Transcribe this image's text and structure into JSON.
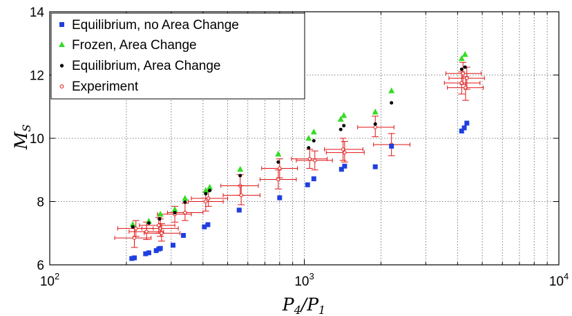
{
  "chart_data": {
    "type": "scatter",
    "title": "",
    "xlabel": "P4/P1",
    "ylabel": "MS",
    "xscale": "log",
    "xlim": [
      100,
      10000
    ],
    "ylim": [
      6,
      14
    ],
    "x_ticks": [
      {
        "value": 100,
        "base": "10",
        "exp": "2"
      },
      {
        "value": 1000,
        "base": "10",
        "exp": "3"
      },
      {
        "value": 10000,
        "base": "10",
        "exp": "4"
      }
    ],
    "y_ticks": [
      6,
      8,
      10,
      12,
      14
    ],
    "grid": true,
    "legend_position": "top-left",
    "colors": {
      "equilibrium_no_area_change": "#1f3fe0",
      "frozen_area_change": "#33dd22",
      "equilibrium_area_change": "#000000",
      "experiment": "#e01010"
    },
    "series": [
      {
        "name": "Equilibrium, no Area Change",
        "marker": "square",
        "points": [
          [
            210,
            6.2
          ],
          [
            215,
            6.22
          ],
          [
            238,
            6.35
          ],
          [
            245,
            6.38
          ],
          [
            262,
            6.45
          ],
          [
            268,
            6.5
          ],
          [
            272,
            6.52
          ],
          [
            305,
            6.62
          ],
          [
            335,
            6.93
          ],
          [
            405,
            7.2
          ],
          [
            418,
            7.27
          ],
          [
            555,
            7.73
          ],
          [
            800,
            8.12
          ],
          [
            1030,
            8.53
          ],
          [
            1090,
            8.72
          ],
          [
            1400,
            9.02
          ],
          [
            1440,
            9.12
          ],
          [
            1900,
            9.1
          ],
          [
            2200,
            9.75
          ],
          [
            4150,
            10.23
          ],
          [
            4250,
            10.33
          ],
          [
            4350,
            10.48
          ]
        ]
      },
      {
        "name": "Frozen, Area Change",
        "marker": "triangle",
        "points": [
          [
            212,
            7.28
          ],
          [
            245,
            7.38
          ],
          [
            272,
            7.6
          ],
          [
            310,
            7.75
          ],
          [
            340,
            8.1
          ],
          [
            410,
            8.35
          ],
          [
            425,
            8.45
          ],
          [
            560,
            9.02
          ],
          [
            790,
            9.5
          ],
          [
            1040,
            10.0
          ],
          [
            1090,
            10.2
          ],
          [
            1390,
            10.6
          ],
          [
            1430,
            10.72
          ],
          [
            1900,
            10.83
          ],
          [
            2200,
            11.5
          ],
          [
            4150,
            12.52
          ],
          [
            4280,
            12.65
          ]
        ]
      },
      {
        "name": "Equilibrium, Area Change",
        "marker": "dot",
        "points": [
          [
            212,
            7.2
          ],
          [
            245,
            7.32
          ],
          [
            270,
            7.45
          ],
          [
            310,
            7.65
          ],
          [
            340,
            7.98
          ],
          [
            410,
            8.25
          ],
          [
            425,
            8.35
          ],
          [
            560,
            8.82
          ],
          [
            790,
            9.25
          ],
          [
            1040,
            9.7
          ],
          [
            1090,
            9.92
          ],
          [
            1390,
            10.28
          ],
          [
            1430,
            10.4
          ],
          [
            1900,
            10.45
          ],
          [
            2200,
            11.12
          ],
          [
            4150,
            12.18
          ],
          [
            4280,
            12.25
          ]
        ]
      },
      {
        "name": "Experiment",
        "marker": "open-circle",
        "points": [
          {
            "x": 215,
            "y": 6.85,
            "xlo": 180,
            "xhi": 250,
            "ylo": 6.55,
            "yhi": 7.15
          },
          {
            "x": 218,
            "y": 7.15,
            "xlo": 185,
            "xhi": 255,
            "ylo": 6.9,
            "yhi": 7.4
          },
          {
            "x": 240,
            "y": 7.05,
            "xlo": 205,
            "xhi": 280,
            "ylo": 6.8,
            "yhi": 7.35
          },
          {
            "x": 268,
            "y": 7.25,
            "xlo": 225,
            "xhi": 310,
            "ylo": 7.0,
            "yhi": 7.5
          },
          {
            "x": 272,
            "y": 7.15,
            "xlo": 230,
            "xhi": 320,
            "ylo": 6.9,
            "yhi": 7.45
          },
          {
            "x": 275,
            "y": 7.0,
            "xlo": 235,
            "xhi": 325,
            "ylo": 6.75,
            "yhi": 7.3
          },
          {
            "x": 310,
            "y": 7.6,
            "xlo": 265,
            "xhi": 360,
            "ylo": 7.35,
            "yhi": 7.85
          },
          {
            "x": 340,
            "y": 7.65,
            "xlo": 290,
            "xhi": 400,
            "ylo": 7.4,
            "yhi": 7.95
          },
          {
            "x": 410,
            "y": 8.0,
            "xlo": 350,
            "xhi": 480,
            "ylo": 7.7,
            "yhi": 8.3
          },
          {
            "x": 420,
            "y": 8.1,
            "xlo": 360,
            "xhi": 500,
            "ylo": 7.85,
            "yhi": 8.35
          },
          {
            "x": 560,
            "y": 8.5,
            "xlo": 470,
            "xhi": 660,
            "ylo": 8.2,
            "yhi": 8.85
          },
          {
            "x": 565,
            "y": 8.2,
            "xlo": 480,
            "xhi": 670,
            "ylo": 7.9,
            "yhi": 8.5
          },
          {
            "x": 800,
            "y": 9.05,
            "xlo": 680,
            "xhi": 940,
            "ylo": 8.75,
            "yhi": 9.35
          },
          {
            "x": 790,
            "y": 8.7,
            "xlo": 670,
            "xhi": 930,
            "ylo": 8.4,
            "yhi": 9.0
          },
          {
            "x": 1050,
            "y": 9.35,
            "xlo": 890,
            "xhi": 1230,
            "ylo": 9.05,
            "yhi": 9.65
          },
          {
            "x": 1100,
            "y": 9.3,
            "xlo": 930,
            "xhi": 1290,
            "ylo": 9.0,
            "yhi": 9.6
          },
          {
            "x": 1420,
            "y": 9.65,
            "xlo": 1200,
            "xhi": 1700,
            "ylo": 9.3,
            "yhi": 10.0
          },
          {
            "x": 1440,
            "y": 9.55,
            "xlo": 1220,
            "xhi": 1720,
            "ylo": 9.25,
            "yhi": 9.9
          },
          {
            "x": 1900,
            "y": 10.35,
            "xlo": 1620,
            "xhi": 2250,
            "ylo": 10.05,
            "yhi": 10.7
          },
          {
            "x": 2200,
            "y": 9.8,
            "xlo": 1870,
            "xhi": 2600,
            "ylo": 9.45,
            "yhi": 10.15
          },
          {
            "x": 4150,
            "y": 11.75,
            "xlo": 3550,
            "xhi": 4900,
            "ylo": 11.4,
            "yhi": 12.1
          },
          {
            "x": 4200,
            "y": 12.05,
            "xlo": 3600,
            "xhi": 4950,
            "ylo": 11.7,
            "yhi": 12.4
          },
          {
            "x": 4300,
            "y": 11.6,
            "xlo": 3650,
            "xhi": 5050,
            "ylo": 11.2,
            "yhi": 11.95
          },
          {
            "x": 4350,
            "y": 11.9,
            "xlo": 3700,
            "xhi": 5100,
            "ylo": 11.55,
            "yhi": 12.25
          }
        ]
      }
    ]
  }
}
